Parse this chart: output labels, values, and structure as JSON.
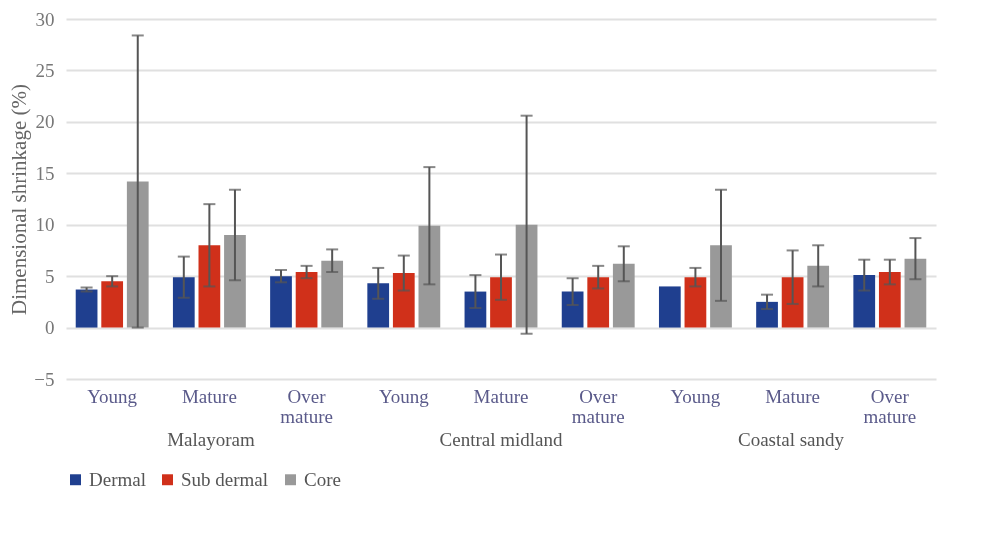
{
  "chart_data": {
    "type": "bar",
    "ylabel": "Dimensional shrinkage (%)",
    "categories": [
      "Young",
      "Mature",
      "Over mature",
      "Young",
      "Mature",
      "Over mature",
      "Young",
      "Mature",
      "Over mature"
    ],
    "series": [
      {
        "name": "Dermal",
        "color": "#1f3f8f",
        "values": [
          3.7,
          4.9,
          5.0,
          4.3,
          3.5,
          3.5,
          4.0,
          2.5,
          5.1
        ],
        "errors": [
          0.2,
          2.0,
          0.6,
          1.5,
          1.6,
          1.3,
          null,
          0.7,
          1.5
        ]
      },
      {
        "name": "Sub dermal",
        "color": "#d0301a",
        "values": [
          4.5,
          8.0,
          5.4,
          5.3,
          4.9,
          4.9,
          4.9,
          4.9,
          5.4
        ],
        "errors": [
          0.5,
          4.0,
          0.6,
          1.7,
          2.2,
          1.1,
          0.9,
          2.6,
          1.2
        ]
      },
      {
        "name": "Core",
        "color": "#999999",
        "values": [
          14.2,
          9.0,
          6.5,
          9.9,
          10.0,
          6.2,
          8.0,
          6.0,
          6.7
        ],
        "errors": [
          14.2,
          4.4,
          1.1,
          5.7,
          10.6,
          1.7,
          5.4,
          2.0,
          2.0
        ]
      }
    ],
    "annotations": [
      "Malayoram",
      "Central midland",
      "Coastal sandy"
    ],
    "ylim": [
      -5,
      30
    ],
    "yticks": [
      -5,
      0,
      5,
      10,
      15,
      20,
      25,
      30
    ],
    "grid": "y",
    "legend": "bottom"
  }
}
